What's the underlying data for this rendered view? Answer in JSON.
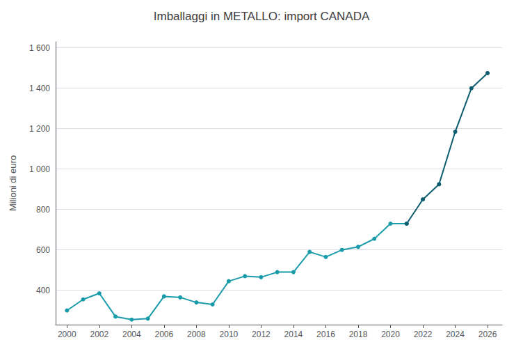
{
  "chart_data": {
    "type": "line",
    "title": "Imballaggi in METALLO: import CANADA",
    "ylabel": "Milioni di euro",
    "x": [
      2000,
      2001,
      2002,
      2003,
      2004,
      2005,
      2006,
      2007,
      2008,
      2009,
      2010,
      2011,
      2012,
      2013,
      2014,
      2015,
      2016,
      2017,
      2018,
      2019,
      2020,
      2021,
      2022,
      2023,
      2024,
      2025,
      2026
    ],
    "series": [
      {
        "color": "#1a9baa",
        "marker": "circle",
        "line_style": "solid",
        "values": [
          300,
          355,
          385,
          270,
          255,
          260,
          370,
          365,
          340,
          330,
          445,
          470,
          465,
          490,
          490,
          590,
          565,
          600,
          615,
          655,
          730,
          730,
          null,
          null,
          null,
          null,
          null
        ]
      },
      {
        "color": "#0d5c6e",
        "marker": "circle",
        "line_style": "solid",
        "values": [
          null,
          null,
          null,
          null,
          null,
          null,
          null,
          null,
          null,
          null,
          null,
          null,
          null,
          null,
          null,
          null,
          null,
          null,
          null,
          null,
          null,
          730,
          850,
          925,
          1185,
          1400,
          1475
        ]
      }
    ],
    "xlim": [
      1999.3,
      2026.9
    ],
    "xticks": [
      2000,
      2002,
      2004,
      2006,
      2008,
      2010,
      2012,
      2014,
      2016,
      2018,
      2020,
      2022,
      2024,
      2026
    ],
    "ylim": [
      230,
      1630
    ],
    "yticks": [
      400,
      600,
      800,
      {
        "value": 1000,
        "label": "1 000"
      },
      {
        "value": 1200,
        "label": "1 200"
      },
      {
        "value": 1400,
        "label": "1 400"
      },
      {
        "value": 1600,
        "label": "1 600"
      }
    ],
    "grid": true
  }
}
